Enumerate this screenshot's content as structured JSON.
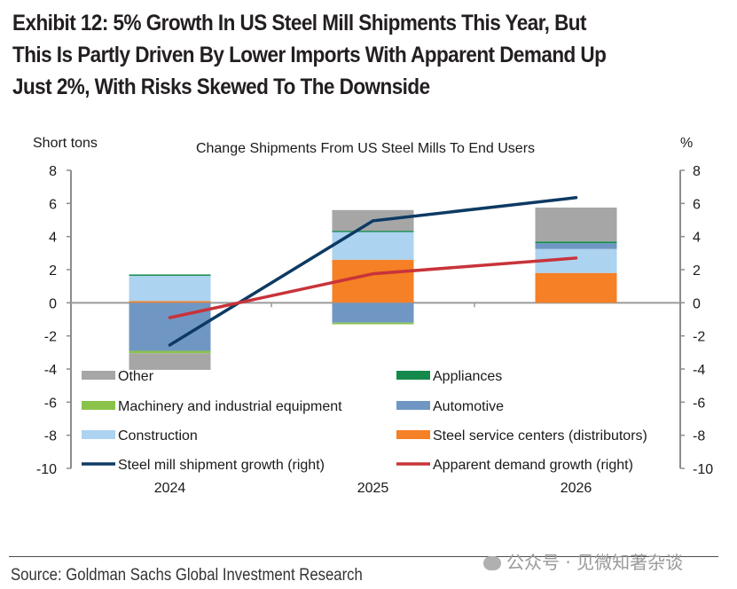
{
  "title_lines": [
    "Exhibit 12: 5% Growth In US Steel Mill Shipments This Year, But",
    "This Is Partly Driven By Lower Imports With Apparent Demand Up",
    "Just 2%, With Risks Skewed To The Downside"
  ],
  "source": "Source: Goldman Sachs Global Investment Research",
  "watermark": "公众号 · 见微知著杂谈",
  "chart_data": {
    "type": "bar",
    "stacked": true,
    "title": "Change Shipments From US Steel Mills To End Users",
    "ylabel_left": "Short tons",
    "ylabel_right": "%",
    "ylim": [
      -10,
      8
    ],
    "ylim_right": [
      -10,
      8
    ],
    "yticks": [
      8,
      6,
      4,
      2,
      0,
      -2,
      -4,
      -6,
      -8,
      -10
    ],
    "categories": [
      "2024",
      "2025",
      "2026"
    ],
    "series": [
      {
        "name": "Steel service centers (distributors)",
        "color": "#f58025",
        "values": [
          0.1,
          2.6,
          1.8
        ]
      },
      {
        "name": "Construction",
        "color": "#acd3f0",
        "values": [
          1.55,
          1.7,
          1.45
        ]
      },
      {
        "name": "Automotive",
        "color": "#7097c3",
        "values": [
          -2.9,
          -1.2,
          0.35
        ]
      },
      {
        "name": "Appliances",
        "color": "#138a4c",
        "values": [
          0.06,
          0.05,
          0.1
        ]
      },
      {
        "name": "Machinery and industrial equipment",
        "color": "#8bc34a",
        "values": [
          -0.15,
          -0.1,
          0.0
        ]
      },
      {
        "name": "Other",
        "color": "#a6a6a6",
        "values": [
          -1.0,
          1.25,
          2.05
        ]
      }
    ],
    "lines": [
      {
        "name": "Steel mill shipment growth (right)",
        "color": "#0d3a63",
        "axis": "right",
        "values": [
          -2.55,
          4.95,
          6.35
        ]
      },
      {
        "name": "Apparent demand growth (right)",
        "color": "#c8333a",
        "axis": "right",
        "values": [
          -0.9,
          1.75,
          2.7
        ]
      }
    ],
    "legend": {
      "placement": "bottom-inside",
      "items": [
        {
          "label": "Other",
          "color": "#a6a6a6",
          "kind": "bar"
        },
        {
          "label": "Appliances",
          "color": "#138a4c",
          "kind": "bar"
        },
        {
          "label": "Machinery and industrial equipment",
          "color": "#8bc34a",
          "kind": "bar"
        },
        {
          "label": "Automotive",
          "color": "#7097c3",
          "kind": "bar"
        },
        {
          "label": "Construction",
          "color": "#acd3f0",
          "kind": "bar"
        },
        {
          "label": "Steel service centers (distributors)",
          "color": "#f58025",
          "kind": "bar"
        },
        {
          "label": "Steel mill shipment growth (right)",
          "color": "#0d3a63",
          "kind": "line"
        },
        {
          "label": "Apparent demand growth (right)",
          "color": "#c8333a",
          "kind": "line"
        }
      ]
    },
    "grid": false
  }
}
